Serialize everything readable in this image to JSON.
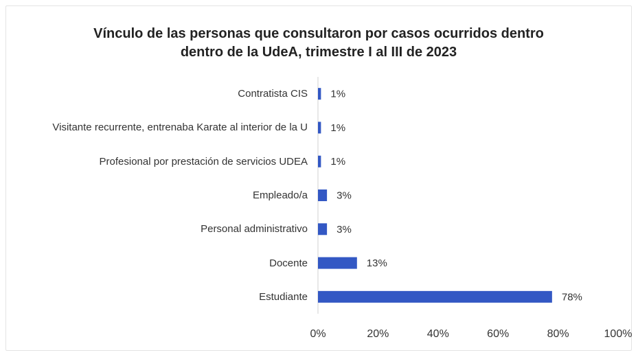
{
  "chart_data": {
    "type": "bar",
    "orientation": "horizontal",
    "title": "Vínculo de las personas que consultaron por casos ocurridos dentro dentro de la UdeA, trimestre I al III de 2023",
    "categories": [
      "Contratista CIS",
      "Visitante recurrente, entrenaba Karate al interior de la U",
      "Profesional por prestación de servicios UDEA",
      "Empleado/a",
      "Personal administrativo",
      "Docente",
      "Estudiante"
    ],
    "values": [
      1,
      1,
      1,
      3,
      3,
      13,
      78
    ],
    "value_labels": [
      "1%",
      "1%",
      "1%",
      "3%",
      "3%",
      "13%",
      "78%"
    ],
    "color": "#3358c4",
    "xlim": [
      0,
      100
    ],
    "xticks": [
      {
        "value": 0,
        "label": "0%"
      },
      {
        "value": 20,
        "label": "20%"
      },
      {
        "value": 40,
        "label": "40%"
      },
      {
        "value": 60,
        "label": "60%"
      },
      {
        "value": 80,
        "label": "80%"
      },
      {
        "value": 100,
        "label": "100%"
      }
    ],
    "grid": false
  }
}
